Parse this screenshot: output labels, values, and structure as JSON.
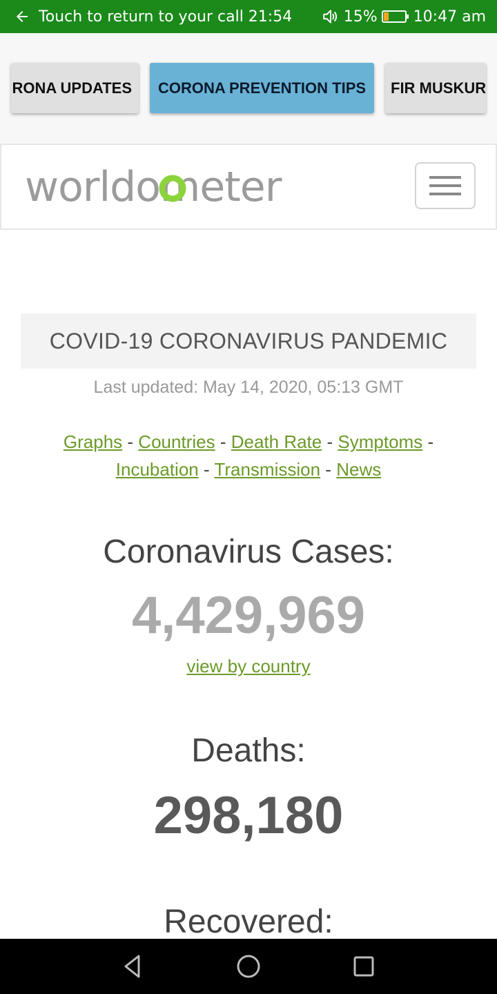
{
  "status_bar": {
    "call_text": "Touch to return to your call 21:54",
    "battery_percent": "15%",
    "time": "10:47 am",
    "bg_color": "#1b8a1b"
  },
  "tabs": [
    {
      "label": "RONA UPDATES"
    },
    {
      "label": "CORONA PREVENTION TIPS",
      "active": true
    },
    {
      "label": "FIR MUSKUR"
    }
  ],
  "header": {
    "logo_text": "worldometer",
    "menu_icon": "hamburger-icon"
  },
  "main": {
    "banner_title": "COVID-19 CORONAVIRUS PANDEMIC",
    "last_updated": "Last updated: May 14, 2020, 05:13 GMT",
    "links": [
      {
        "label": "Graphs"
      },
      {
        "label": "Countries"
      },
      {
        "label": "Death Rate"
      },
      {
        "label": "Symptoms"
      },
      {
        "label": "Incubation"
      },
      {
        "label": "Transmission"
      },
      {
        "label": "News"
      }
    ],
    "link_separator": "-",
    "cases_label": "Coronavirus Cases:",
    "cases_value": "4,429,969",
    "view_by_country": "view by country",
    "deaths_label": "Deaths:",
    "deaths_value": "298,180",
    "recovered_label": "Recovered:"
  },
  "nav_bar": {
    "back": "back-triangle-icon",
    "home": "home-circle-icon",
    "recents": "recents-square-icon"
  },
  "colors": {
    "link_green": "#6b9a29",
    "active_tab": "#69b2d6"
  }
}
